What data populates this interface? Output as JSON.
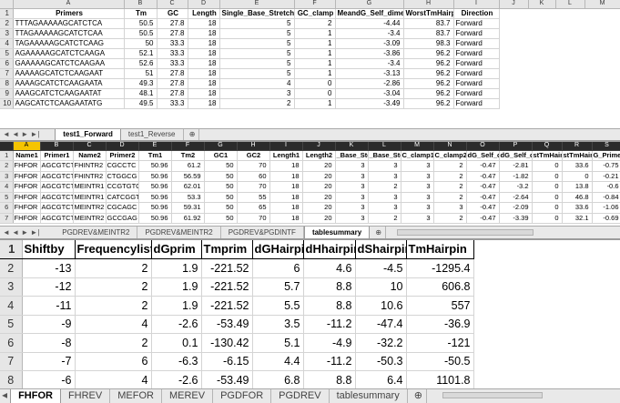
{
  "sheet1": {
    "col_letters": [
      "",
      "A",
      "B",
      "C",
      "D",
      "E",
      "F",
      "G",
      "H",
      "I",
      "J",
      "K",
      "L",
      "M"
    ],
    "headers": [
      "Primers",
      "Tm",
      "GC",
      "Length",
      "Single_Base_Stretch",
      "GC_clamp",
      "MeandG_Self_dimer",
      "WorstTmHairpin",
      "Direction"
    ],
    "rows": [
      {
        "n": "2",
        "cells": [
          "TTTAGAAAAAGCATCTCA",
          "50.5",
          "27.8",
          "18",
          "5",
          "2",
          "-4.44",
          "83.7",
          "Forward"
        ]
      },
      {
        "n": "3",
        "cells": [
          "TTAGAAAAAGCATCTCAA",
          "50.5",
          "27.8",
          "18",
          "5",
          "1",
          "-3.4",
          "83.7",
          "Forward"
        ]
      },
      {
        "n": "4",
        "cells": [
          "TAGAAAAAGCATCTCAAG",
          "50",
          "33.3",
          "18",
          "5",
          "1",
          "-3.09",
          "98.3",
          "Forward"
        ]
      },
      {
        "n": "5",
        "cells": [
          "AGAAAAAGCATCTCAAGA",
          "52.1",
          "33.3",
          "18",
          "5",
          "1",
          "-3.86",
          "96.2",
          "Forward"
        ]
      },
      {
        "n": "6",
        "cells": [
          "GAAAAAGCATCTCAAGAA",
          "52.6",
          "33.3",
          "18",
          "5",
          "1",
          "-3.4",
          "96.2",
          "Forward"
        ]
      },
      {
        "n": "7",
        "cells": [
          "AAAAAGCATCTCAAGAAT",
          "51",
          "27.8",
          "18",
          "5",
          "1",
          "-3.13",
          "96.2",
          "Forward"
        ]
      },
      {
        "n": "8",
        "cells": [
          "AAAAGCATCTCAAGAATA",
          "49.3",
          "27.8",
          "18",
          "4",
          "0",
          "-2.86",
          "96.2",
          "Forward"
        ]
      },
      {
        "n": "9",
        "cells": [
          "AAAGCATCTCAAGAATAT",
          "48.1",
          "27.8",
          "18",
          "3",
          "0",
          "-3.04",
          "96.2",
          "Forward"
        ]
      },
      {
        "n": "10",
        "cells": [
          "AAGCATCTCAAGAATATG",
          "49.5",
          "33.3",
          "18",
          "2",
          "1",
          "-3.49",
          "96.2",
          "Forward"
        ]
      }
    ],
    "tabs": [
      "test1_Forward",
      "test1_Reverse"
    ],
    "active_tab": "test1_Forward",
    "nav": "◄ ◄ ► ►|",
    "new_sheet": "⊕"
  },
  "sheet2": {
    "col_letters": [
      "",
      "A",
      "B",
      "C",
      "D",
      "E",
      "F",
      "G",
      "H",
      "I",
      "J",
      "K",
      "L",
      "M",
      "N",
      "O",
      "P",
      "Q",
      "R",
      "S"
    ],
    "headers": [
      "Name1",
      "Primer1",
      "Name2",
      "Primer2",
      "Tm1",
      "Tm2",
      "GC1",
      "GC2",
      "Length1",
      "Length2",
      "_Base_Ste",
      "_Base_Ste",
      "C_clamp1",
      "C_clamp2",
      "dG_Self_d",
      "dG_Self_d",
      "stTmHairp",
      "stTmHairp",
      "G_Primer_"
    ],
    "rows": [
      {
        "n": "2",
        "cells": [
          "FHFOR",
          "AGCGTCT",
          "FHINTR2",
          "CGCCTC",
          "50.96",
          "61.2",
          "50",
          "70",
          "18",
          "20",
          "3",
          "3",
          "3",
          "2",
          "-0.47",
          "-2.81",
          "0",
          "33.6",
          "-0.75"
        ]
      },
      {
        "n": "3",
        "cells": [
          "FHFOR",
          "AGCGTCT",
          "FHINTR2",
          "CTGGCG",
          "50.96",
          "56.59",
          "50",
          "60",
          "18",
          "20",
          "3",
          "3",
          "3",
          "2",
          "-0.47",
          "-1.82",
          "0",
          "0",
          "-0.21"
        ]
      },
      {
        "n": "4",
        "cells": [
          "FHFOR",
          "AGCGTCT",
          "MEINTR1",
          "CCGTGTG",
          "50.96",
          "62.01",
          "50",
          "70",
          "18",
          "20",
          "3",
          "2",
          "3",
          "2",
          "-0.47",
          "-3.2",
          "0",
          "13.8",
          "-0.6"
        ]
      },
      {
        "n": "5",
        "cells": [
          "FHFOR",
          "AGCGTCT",
          "MEINTR1",
          "CATCGGT",
          "50.96",
          "53.3",
          "50",
          "55",
          "18",
          "20",
          "3",
          "3",
          "3",
          "2",
          "-0.47",
          "-2.64",
          "0",
          "46.8",
          "-0.84"
        ]
      },
      {
        "n": "6",
        "cells": [
          "FHFOR",
          "AGCGTCT",
          "MEINTR2",
          "CGCAGC",
          "50.96",
          "59.31",
          "50",
          "65",
          "18",
          "20",
          "3",
          "3",
          "3",
          "3",
          "-0.47",
          "-2.09",
          "0",
          "33.6",
          "-1.06"
        ]
      },
      {
        "n": "7",
        "cells": [
          "FHFOR",
          "AGCGTCT",
          "MEINTR2",
          "GCCGAG",
          "50.96",
          "61.92",
          "50",
          "70",
          "18",
          "20",
          "3",
          "2",
          "3",
          "2",
          "-0.47",
          "-3.39",
          "0",
          "32.1",
          "-0.69"
        ]
      }
    ],
    "tabs": [
      "PGDREV&MEINTR2",
      "PGDREV&MEINTR2",
      "PGDREV&PGDINTF",
      "tablesummary"
    ],
    "active_tab": "tablesummary",
    "nav": "◄ ◄ ► ►|",
    "new_sheet": "⊕"
  },
  "sheet3": {
    "corner": "1",
    "headers": [
      "Shiftby",
      "Frequencylist",
      "dGprim",
      "Tmprim",
      "dGHairpin",
      "dHhairpin",
      "dShairpin",
      "TmHairpin"
    ],
    "rows": [
      {
        "n": "2",
        "cells": [
          "-13",
          "2",
          "1.9",
          "-221.52",
          "6",
          "4.6",
          "-4.5",
          "-1295.4"
        ]
      },
      {
        "n": "3",
        "cells": [
          "-12",
          "2",
          "1.9",
          "-221.52",
          "5.7",
          "8.8",
          "10",
          "606.8"
        ]
      },
      {
        "n": "4",
        "cells": [
          "-11",
          "2",
          "1.9",
          "-221.52",
          "5.5",
          "8.8",
          "10.6",
          "557"
        ]
      },
      {
        "n": "5",
        "cells": [
          "-9",
          "4",
          "-2.6",
          "-53.49",
          "3.5",
          "-11.2",
          "-47.4",
          "-36.9"
        ]
      },
      {
        "n": "6",
        "cells": [
          "-8",
          "2",
          "0.1",
          "-130.42",
          "5.1",
          "-4.9",
          "-32.2",
          "-121"
        ]
      },
      {
        "n": "7",
        "cells": [
          "-7",
          "6",
          "-6.3",
          "-6.15",
          "4.4",
          "-11.2",
          "-50.3",
          "-50.5"
        ]
      },
      {
        "n": "8",
        "cells": [
          "-6",
          "4",
          "-2.6",
          "-53.49",
          "6.8",
          "8.8",
          "6.4",
          "1101.8"
        ]
      }
    ],
    "tabs": [
      "FHFOR",
      "FHREV",
      "MEFOR",
      "MEREV",
      "PGDFOR",
      "PGDREV",
      "tablesummary"
    ],
    "active_tab": "FHFOR",
    "new_sheet": "⊕",
    "nav": "◄ ◄ ► ►|"
  }
}
